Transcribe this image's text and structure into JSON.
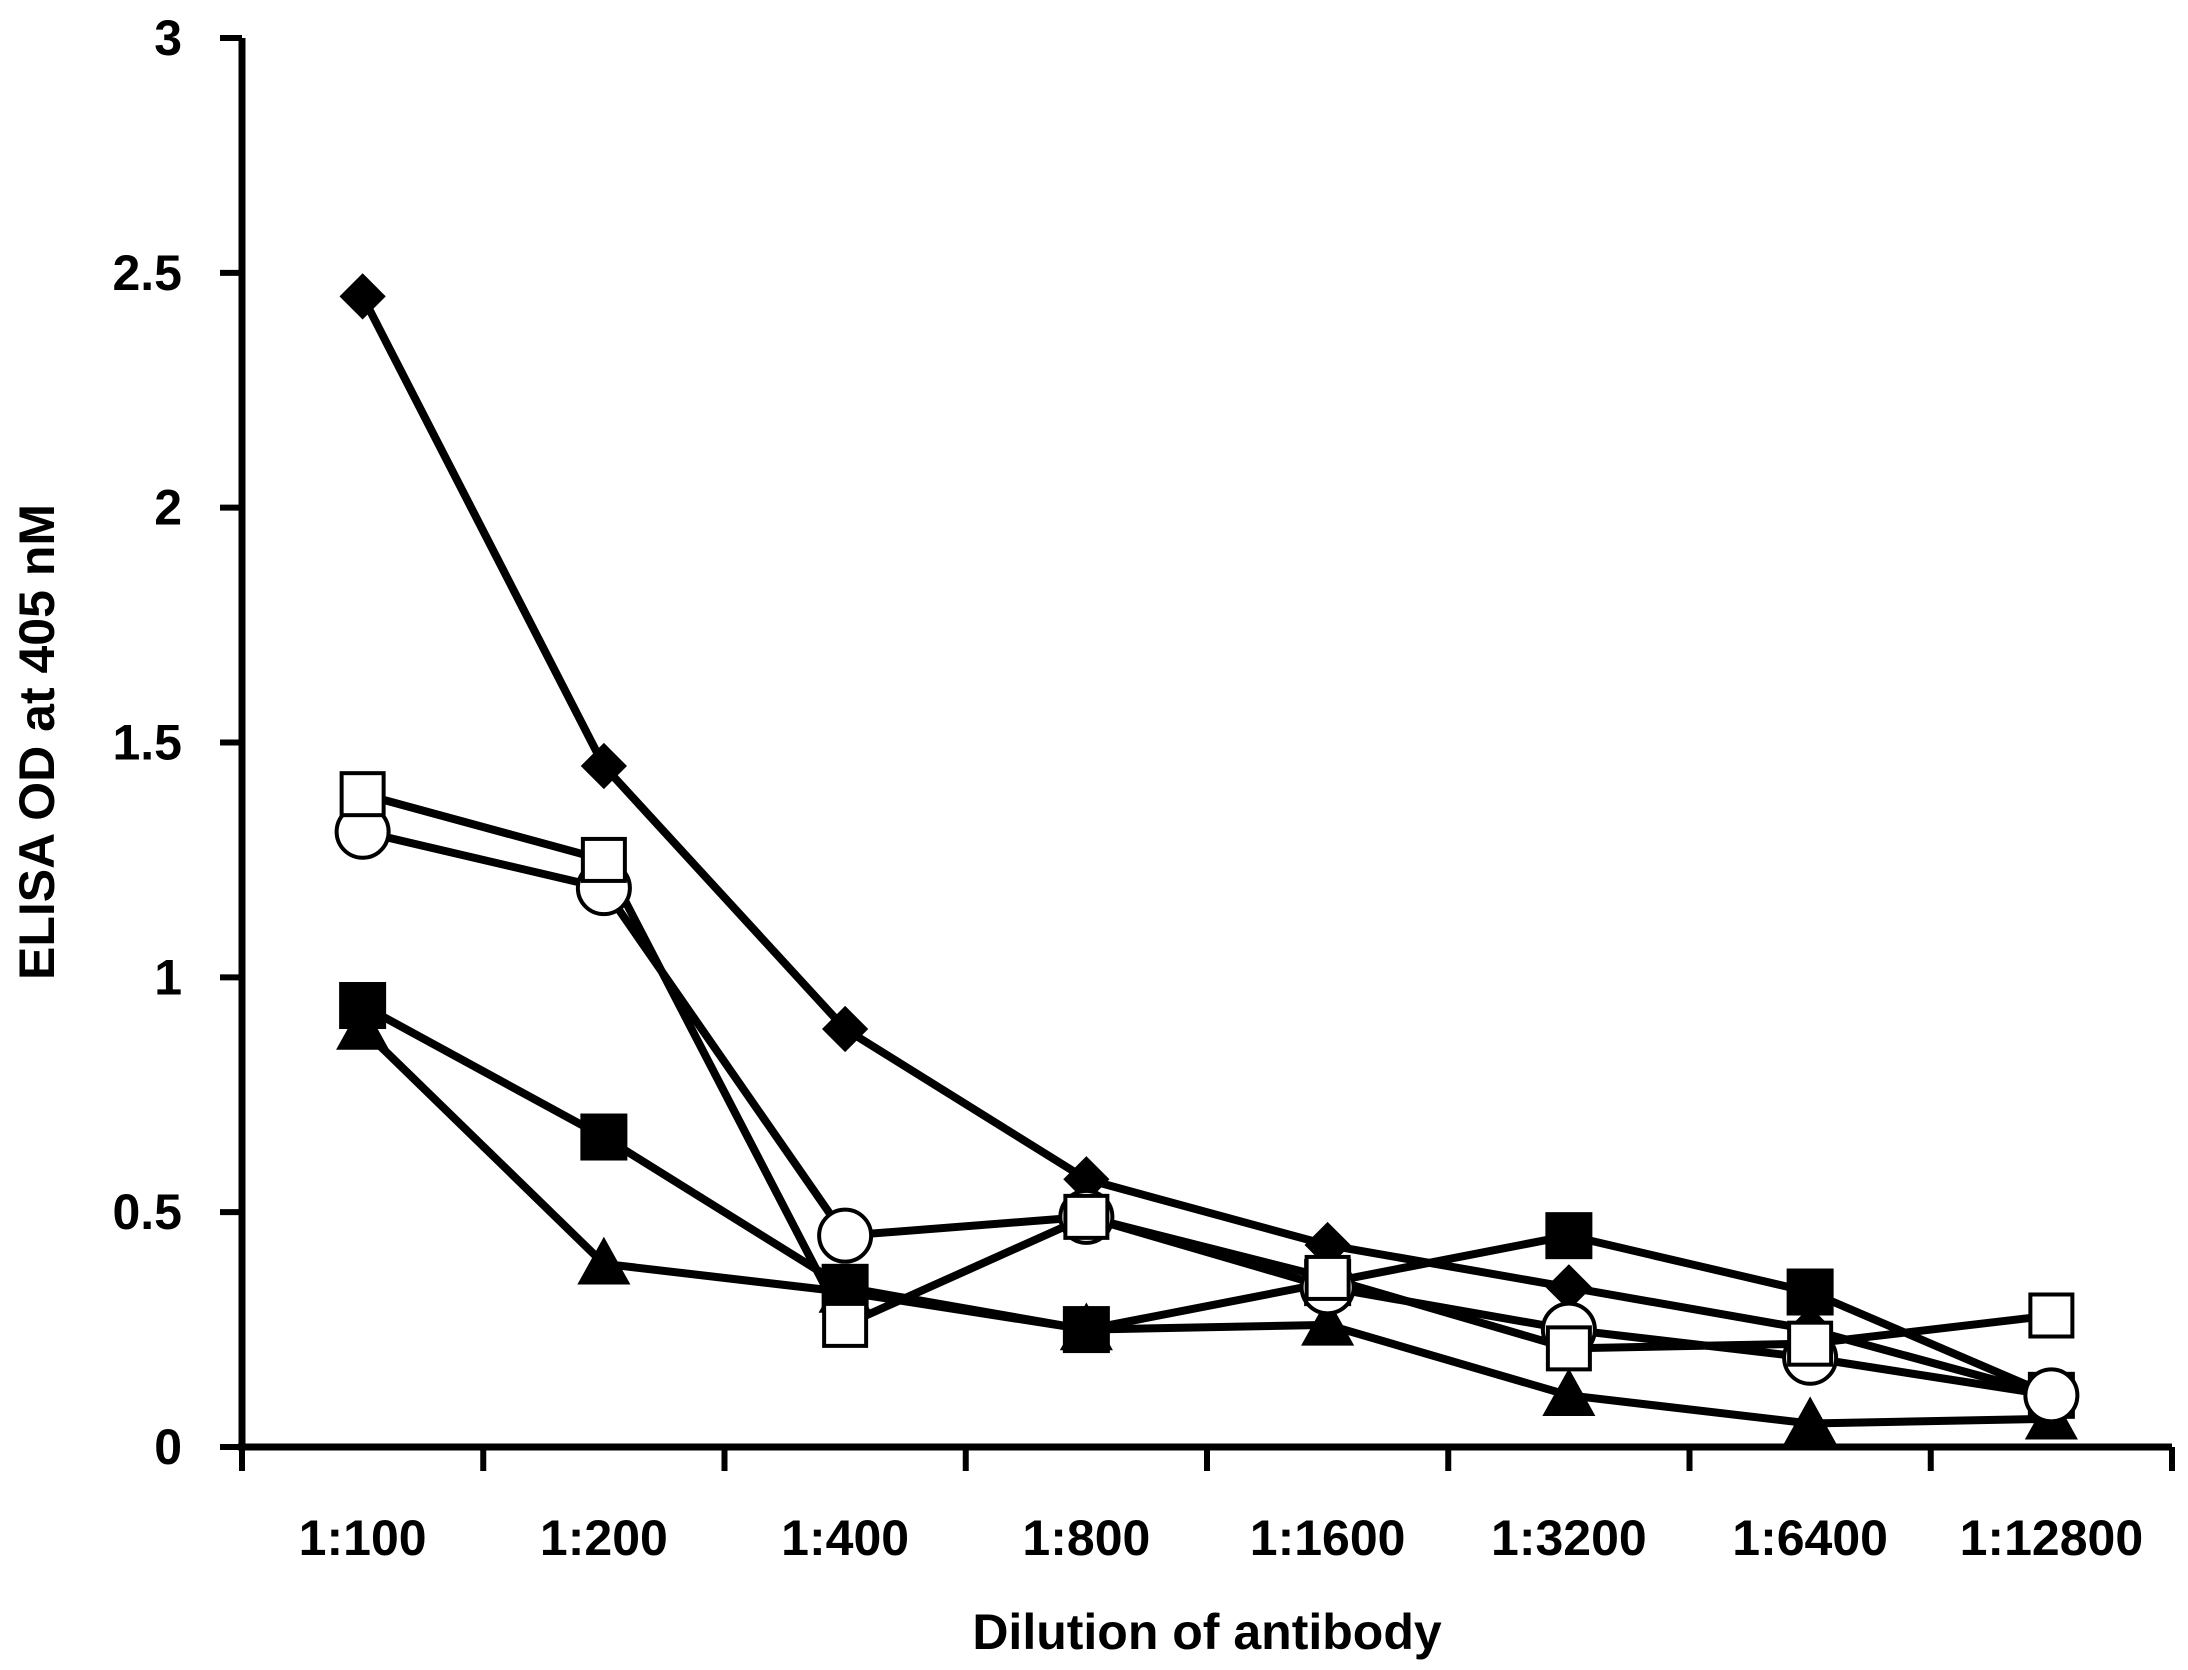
{
  "chart_data": {
    "type": "line",
    "title": "",
    "xlabel": "Dilution of antibody",
    "ylabel": "ELISA OD at 405 nM",
    "categories": [
      "1:100",
      "1:200",
      "1:400",
      "1:800",
      "1:1600",
      "1:3200",
      "1:6400",
      "1:12800"
    ],
    "ylim": [
      0,
      3
    ],
    "yticks": [
      {
        "value": 0,
        "label": "0"
      },
      {
        "value": 0.5,
        "label": "0.5"
      },
      {
        "value": 1,
        "label": "1"
      },
      {
        "value": 1.5,
        "label": "1.5"
      },
      {
        "value": 2,
        "label": "2"
      },
      {
        "value": 2.5,
        "label": "2.5"
      },
      {
        "value": 3,
        "label": "3"
      }
    ],
    "grid": false,
    "legend": "none",
    "series": [
      {
        "marker": "filled-diamond",
        "values": [
          2.45,
          1.45,
          0.89,
          0.57,
          0.43,
          0.34,
          0.25,
          0.11
        ]
      },
      {
        "marker": "open-square",
        "values": [
          1.39,
          1.25,
          0.26,
          0.49,
          0.36,
          0.21,
          0.22,
          0.28
        ]
      },
      {
        "marker": "open-circle",
        "values": [
          1.31,
          1.19,
          0.45,
          0.49,
          0.34,
          0.25,
          0.19,
          0.11
        ]
      },
      {
        "marker": "filled-square",
        "values": [
          0.94,
          0.66,
          0.34,
          0.25,
          0.35,
          0.45,
          0.33,
          0.11
        ]
      },
      {
        "marker": "filled-triangle",
        "values": [
          0.89,
          0.39,
          0.33,
          0.25,
          0.26,
          0.11,
          0.05,
          0.06
        ]
      }
    ],
    "colors": {
      "line": "#000000",
      "marker_fill_open": "#ffffff",
      "marker_fill_filled": "#000000"
    }
  }
}
